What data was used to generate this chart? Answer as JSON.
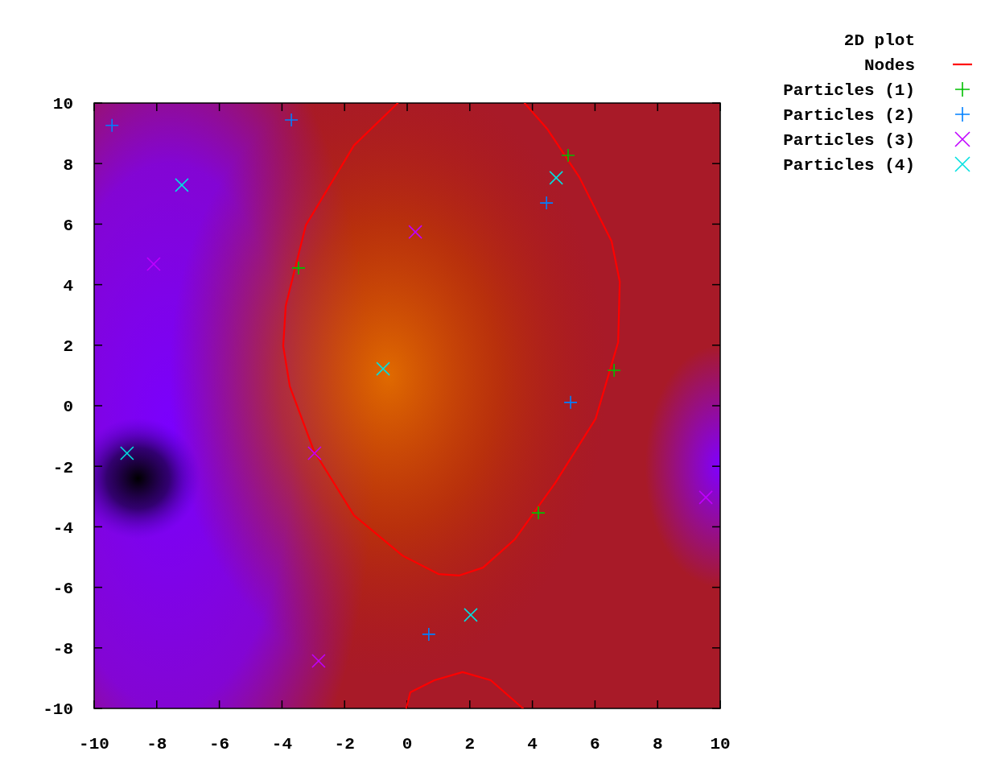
{
  "chart_data": {
    "type": "scatter",
    "legend_title": "2D plot",
    "legend": "top right",
    "grid": false,
    "xlim": [
      -10,
      10
    ],
    "ylim": [
      -10,
      10
    ],
    "xticks": [
      -10,
      -8,
      -6,
      -4,
      -2,
      0,
      2,
      4,
      6,
      8,
      10
    ],
    "yticks": [
      -10,
      -8,
      -6,
      -4,
      -2,
      0,
      2,
      4,
      6,
      8,
      10
    ],
    "series": [
      {
        "name": "Nodes",
        "type": "line",
        "color": "#ff0000",
        "marker": "none",
        "x": [
          -0.3,
          -1.7,
          -3.24,
          -3.88,
          -3.96,
          -3.75,
          -2.98,
          -1.7,
          -0.15,
          1.0,
          1.65,
          2.42,
          3.44,
          4.73,
          6.02,
          6.74,
          6.79,
          6.53,
          5.5,
          4.47,
          3.75,
          null,
          -0.03,
          0.1,
          0.87,
          1.77,
          2.67,
          3.7
        ],
        "values": [
          10,
          8.6,
          5.96,
          3.3,
          1.97,
          0.64,
          -1.49,
          -3.62,
          -4.95,
          -5.56,
          -5.61,
          -5.35,
          -4.41,
          -2.55,
          -0.43,
          2.1,
          4.1,
          5.43,
          7.55,
          9.15,
          10,
          null,
          -10,
          -9.47,
          -9.07,
          -8.8,
          -9.07,
          -10
        ]
      },
      {
        "name": "Particles (1)",
        "color": "#00c000",
        "marker": "plus",
        "x": [
          5.14,
          -3.47,
          6.61,
          4.19
        ],
        "values": [
          8.27,
          4.55,
          1.17,
          -3.54
        ]
      },
      {
        "name": "Particles (2)",
        "color": "#0080ff",
        "marker": "plus",
        "x": [
          -9.43,
          -3.7,
          4.45,
          5.22,
          0.69
        ],
        "values": [
          9.26,
          9.44,
          6.7,
          0.11,
          -7.55
        ]
      },
      {
        "name": "Particles (3)",
        "color": "#c000ff",
        "marker": "cross",
        "x": [
          -8.1,
          0.26,
          -2.96,
          9.54,
          -2.83
        ],
        "values": [
          4.68,
          5.74,
          -1.57,
          -3.03,
          -8.43
        ]
      },
      {
        "name": "Particles (4)",
        "color": "#00e0e0",
        "marker": "cross",
        "x": [
          -7.2,
          4.76,
          -0.77,
          -8.95,
          2.03
        ],
        "values": [
          7.29,
          7.53,
          1.22,
          -1.57,
          -6.91
        ]
      }
    ]
  }
}
